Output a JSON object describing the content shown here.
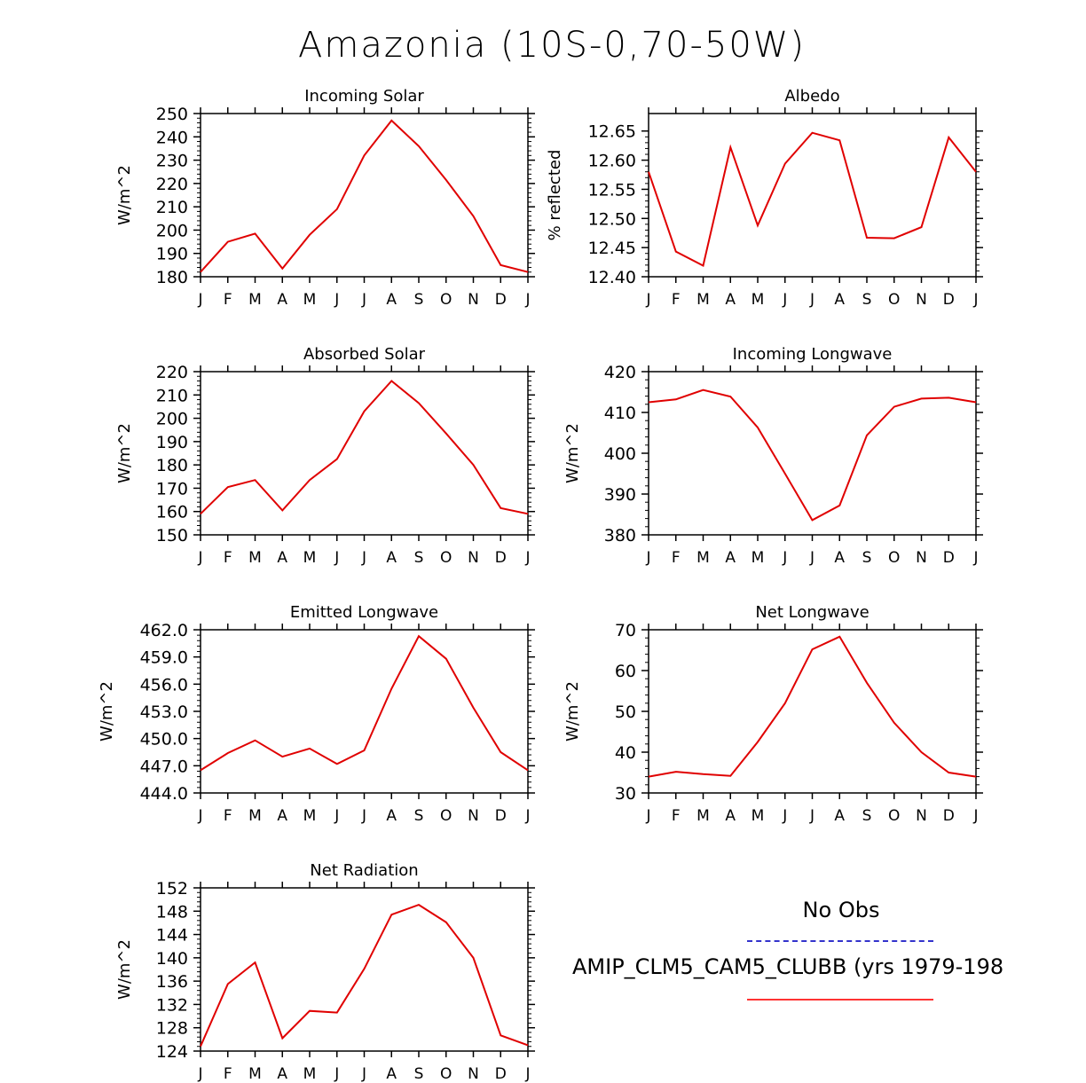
{
  "title": "Amazonia (10S-0,70-50W)",
  "colors": {
    "model": "#e00000",
    "obs": "#3333cc"
  },
  "legend": {
    "obs_label": "No Obs",
    "model_label": "AMIP_CLM5_CAM5_CLUBB (yrs 1979-198"
  },
  "chart_data": [
    {
      "type": "line",
      "title": "Incoming Solar",
      "ylabel": "W/m^2",
      "categories": [
        "J",
        "F",
        "M",
        "A",
        "M",
        "J",
        "J",
        "A",
        "S",
        "O",
        "N",
        "D",
        "J"
      ],
      "ylim": [
        180,
        250
      ],
      "yticks": [
        180,
        190,
        200,
        210,
        220,
        230,
        240,
        250
      ],
      "ytick_labels": [
        "180",
        "190",
        "200",
        "210",
        "220",
        "230",
        "240",
        "250"
      ],
      "series": [
        {
          "values": [
            182,
            195,
            198.5,
            183.5,
            198,
            209,
            232,
            247,
            236,
            221.5,
            206,
            185,
            182
          ]
        }
      ]
    },
    {
      "type": "line",
      "title": "Albedo",
      "ylabel": "% reflected",
      "categories": [
        "J",
        "F",
        "M",
        "A",
        "M",
        "J",
        "J",
        "A",
        "S",
        "O",
        "N",
        "D",
        "J"
      ],
      "ylim": [
        12.4,
        12.68
      ],
      "yticks": [
        12.4,
        12.45,
        12.5,
        12.55,
        12.6,
        12.65
      ],
      "ytick_labels": [
        "12.40",
        "12.45",
        "12.50",
        "12.55",
        "12.60",
        "12.65"
      ],
      "series": [
        {
          "values": [
            12.58,
            12.443,
            12.419,
            12.622,
            12.488,
            12.594,
            12.647,
            12.634,
            12.467,
            12.466,
            12.485,
            12.639,
            12.58
          ]
        }
      ]
    },
    {
      "type": "line",
      "title": "Absorbed Solar",
      "ylabel": "W/m^2",
      "categories": [
        "J",
        "F",
        "M",
        "A",
        "M",
        "J",
        "J",
        "A",
        "S",
        "O",
        "N",
        "D",
        "J"
      ],
      "ylim": [
        150,
        220
      ],
      "yticks": [
        150,
        160,
        170,
        180,
        190,
        200,
        210,
        220
      ],
      "ytick_labels": [
        "150",
        "160",
        "170",
        "180",
        "190",
        "200",
        "210",
        "220"
      ],
      "series": [
        {
          "values": [
            159,
            170.5,
            173.5,
            160.5,
            173.5,
            182.5,
            203,
            216,
            206.5,
            193.5,
            180,
            161.5,
            159
          ]
        }
      ]
    },
    {
      "type": "line",
      "title": "Incoming Longwave",
      "ylabel": "W/m^2",
      "categories": [
        "J",
        "F",
        "M",
        "A",
        "M",
        "J",
        "J",
        "A",
        "S",
        "O",
        "N",
        "D",
        "J"
      ],
      "ylim": [
        380,
        420
      ],
      "yticks": [
        380,
        390,
        400,
        410,
        420
      ],
      "ytick_labels": [
        "380",
        "390",
        "400",
        "410",
        "420"
      ],
      "series": [
        {
          "values": [
            412.5,
            413.2,
            415.5,
            413.9,
            406.3,
            395,
            383.6,
            387.2,
            404.4,
            411.4,
            413.4,
            413.6,
            412.5
          ]
        }
      ]
    },
    {
      "type": "line",
      "title": "Emitted Longwave",
      "ylabel": "W/m^2",
      "categories": [
        "J",
        "F",
        "M",
        "A",
        "M",
        "J",
        "J",
        "A",
        "S",
        "O",
        "N",
        "D",
        "J"
      ],
      "ylim": [
        444,
        462
      ],
      "yticks": [
        444,
        447,
        450,
        453,
        456,
        459,
        462
      ],
      "ytick_labels": [
        "444.0",
        "447.0",
        "450.0",
        "453.0",
        "456.0",
        "459.0",
        "462.0"
      ],
      "series": [
        {
          "values": [
            446.5,
            448.4,
            449.8,
            448,
            448.9,
            447.2,
            448.7,
            455.5,
            461.3,
            458.8,
            453.4,
            448.5,
            446.5
          ]
        }
      ]
    },
    {
      "type": "line",
      "title": "Net Longwave",
      "ylabel": "W/m^2",
      "categories": [
        "J",
        "F",
        "M",
        "A",
        "M",
        "J",
        "J",
        "A",
        "S",
        "O",
        "N",
        "D",
        "J"
      ],
      "ylim": [
        30,
        70
      ],
      "yticks": [
        30,
        40,
        50,
        60,
        70
      ],
      "ytick_labels": [
        "30",
        "40",
        "50",
        "60",
        "70"
      ],
      "series": [
        {
          "values": [
            34,
            35.2,
            34.6,
            34.2,
            42.5,
            52,
            65.2,
            68.3,
            57,
            47.2,
            40,
            35,
            34
          ]
        }
      ]
    },
    {
      "type": "line",
      "title": "Net Radiation",
      "ylabel": "W/m^2",
      "categories": [
        "J",
        "F",
        "M",
        "A",
        "M",
        "J",
        "J",
        "A",
        "S",
        "O",
        "N",
        "D",
        "J"
      ],
      "ylim": [
        124,
        152
      ],
      "yticks": [
        124,
        128,
        132,
        136,
        140,
        144,
        148,
        152
      ],
      "ytick_labels": [
        "124",
        "128",
        "132",
        "136",
        "140",
        "144",
        "148",
        "152"
      ],
      "series": [
        {
          "values": [
            124.8,
            135.5,
            139.2,
            126.2,
            130.9,
            130.6,
            138.1,
            147.4,
            149.1,
            146.1,
            140,
            126.7,
            125
          ]
        }
      ]
    }
  ]
}
